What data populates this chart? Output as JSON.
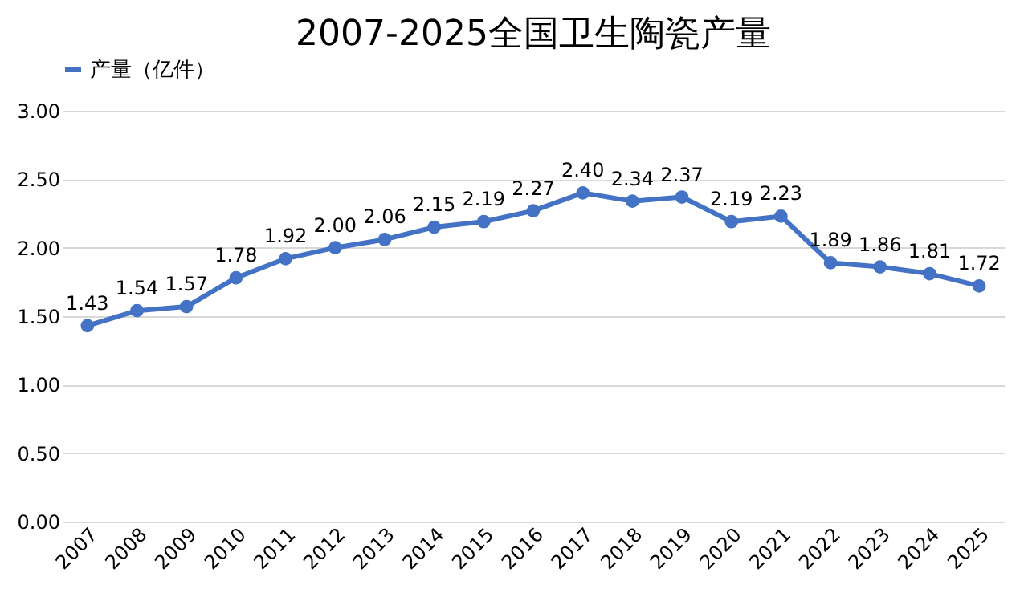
{
  "chart_data": {
    "type": "line",
    "title": "2007-2025全国卫生陶瓷产量",
    "categories": [
      "2007",
      "2008",
      "2009",
      "2010",
      "2011",
      "2012",
      "2013",
      "2014",
      "2015",
      "2016",
      "2017",
      "2018",
      "2019",
      "2020",
      "2021",
      "2022",
      "2023",
      "2024",
      "2025"
    ],
    "series": [
      {
        "name": "产量（亿件）",
        "color": "#4472c4",
        "values": [
          1.43,
          1.54,
          1.57,
          1.78,
          1.92,
          2.0,
          2.06,
          2.15,
          2.19,
          2.27,
          2.4,
          2.34,
          2.37,
          2.19,
          2.23,
          1.89,
          1.86,
          1.81,
          1.72
        ],
        "value_labels": [
          "1.43",
          "1.54",
          "1.57",
          "1.78",
          "1.92",
          "2.00",
          "2.06",
          "2.15",
          "2.19",
          "2.27",
          "2.40",
          "2.34",
          "2.37",
          "2.19",
          "2.23",
          "1.89",
          "1.86",
          "1.81",
          "1.72"
        ]
      }
    ],
    "ylim": [
      0,
      3
    ],
    "yticks": [
      {
        "value": 0,
        "label": "0.00"
      },
      {
        "value": 0.5,
        "label": "0.50"
      },
      {
        "value": 1,
        "label": "1.00"
      },
      {
        "value": 1.5,
        "label": "1.50"
      },
      {
        "value": 2,
        "label": "2.00"
      },
      {
        "value": 2.5,
        "label": "2.50"
      },
      {
        "value": 3,
        "label": "3.00"
      }
    ],
    "grid": "y",
    "legend": "top",
    "marker": "circle",
    "line_style": "solid"
  }
}
